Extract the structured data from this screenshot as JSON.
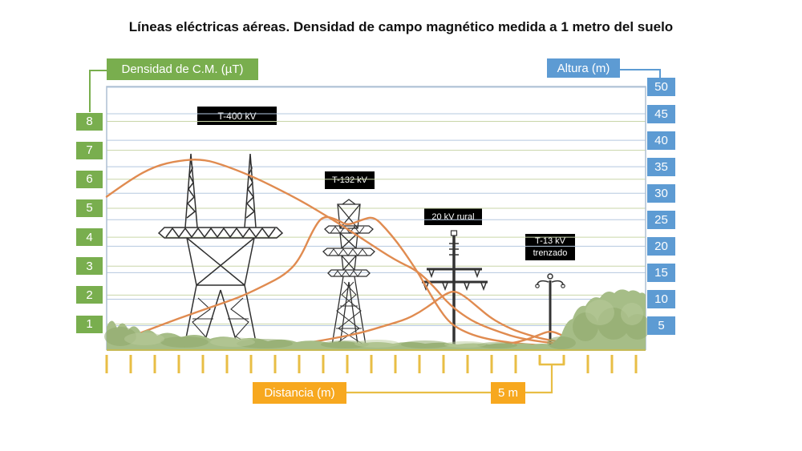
{
  "title": "Líneas eléctricas aéreas. Densidad de campo magnético medida a 1 metro del suelo",
  "left_axis": {
    "label": "Densidad de C.M. (µT)",
    "ticks": [
      "8",
      "7",
      "6",
      "5",
      "4",
      "3",
      "2",
      "1"
    ],
    "box_color": "#79AE4E",
    "grid_color": "#C9D6A8"
  },
  "right_axis": {
    "label": "Altura (m)",
    "ticks": [
      "50",
      "45",
      "40",
      "35",
      "30",
      "25",
      "20",
      "15",
      "10",
      "5"
    ],
    "box_color": "#5D9BD3",
    "grid_color": "#B5C8DF"
  },
  "bottom_axis": {
    "label": "Distancia (m)",
    "scale_label": "5 m",
    "tick_count": 23,
    "tick_interval_m": 5,
    "box_color": "#F7A81F",
    "tick_color": "#E8BE45"
  },
  "tower_labels": {
    "t400": "T-400 kV",
    "t132": "T-132 kV",
    "kv20": "20 kV rural",
    "t13_line1": "T-13 kV",
    "t13_line2": "trenzado"
  },
  "chart_data": {
    "type": "line",
    "title": "Densidad de campo magnético a 1 m del suelo vs distancia",
    "xlabel": "Distancia (m)",
    "ylabel_left": "Densidad de C.M. (µT)",
    "ylabel_right": "Altura (m)",
    "y_left_range": [
      1,
      8
    ],
    "y_right_range": [
      5,
      50
    ],
    "x_tick_interval_m": 5,
    "grid": true,
    "line_color": "#E08B50",
    "towers": [
      {
        "name": "T-400 kV",
        "x_m": 20,
        "approx_height_m": 37
      },
      {
        "name": "T-132 kV",
        "x_m": 50,
        "approx_height_m": 28
      },
      {
        "name": "20 kV rural",
        "x_m": 72,
        "approx_height_m": 21
      },
      {
        "name": "T-13 kV trenzado",
        "x_m": 92,
        "approx_height_m": 14
      }
    ],
    "series": [
      {
        "id": "t400",
        "name": "T-400 kV",
        "points": [
          [
            0,
            5.4
          ],
          [
            5,
            6.0
          ],
          [
            10,
            6.45
          ],
          [
            15,
            6.65
          ],
          [
            20,
            6.7
          ],
          [
            25,
            6.45
          ],
          [
            31,
            6.05
          ],
          [
            37,
            5.55
          ],
          [
            41,
            5.2
          ],
          [
            48,
            4.5
          ],
          [
            54,
            3.85
          ],
          [
            60,
            3.2
          ],
          [
            64.5,
            2.85
          ],
          [
            68,
            2.3
          ],
          [
            71,
            1.7
          ],
          [
            75,
            1.2
          ],
          [
            78,
            0.95
          ],
          [
            82,
            0.7
          ],
          [
            86,
            0.5
          ],
          [
            92,
            0.35
          ],
          [
            97,
            0.27
          ],
          [
            101,
            0.22
          ]
        ]
      },
      {
        "id": "t132",
        "name": "T-132 kV",
        "points": [
          [
            0.5,
            0.28
          ],
          [
            8,
            0.75
          ],
          [
            15,
            1.2
          ],
          [
            22,
            1.6
          ],
          [
            28,
            1.95
          ],
          [
            33,
            2.35
          ],
          [
            37,
            2.7
          ],
          [
            40,
            3.2
          ],
          [
            43,
            4.3
          ],
          [
            45,
            4.75
          ],
          [
            48,
            4.6
          ],
          [
            50,
            4.4
          ],
          [
            53,
            4.6
          ],
          [
            55.5,
            4.72
          ],
          [
            58,
            4.3
          ],
          [
            60.5,
            3.8
          ],
          [
            63,
            3.2
          ],
          [
            65,
            2.7
          ],
          [
            67,
            2.1
          ],
          [
            69,
            1.55
          ],
          [
            71,
            1.1
          ],
          [
            73,
            0.85
          ],
          [
            76,
            0.62
          ],
          [
            80,
            0.45
          ],
          [
            85,
            0.33
          ],
          [
            90,
            0.27
          ],
          [
            95,
            0.23
          ]
        ]
      },
      {
        "id": "kv20",
        "name": "20 kV rural",
        "points": [
          [
            33,
            0.15
          ],
          [
            40,
            0.3
          ],
          [
            47,
            0.5
          ],
          [
            53,
            0.7
          ],
          [
            58,
            0.95
          ],
          [
            62,
            1.15
          ],
          [
            65,
            1.4
          ],
          [
            68,
            1.75
          ],
          [
            70.5,
            2.05
          ],
          [
            72.3,
            2.15
          ],
          [
            74.5,
            1.95
          ],
          [
            77,
            1.6
          ],
          [
            79.5,
            1.25
          ],
          [
            82,
            1.0
          ],
          [
            84.5,
            0.8
          ],
          [
            87.5,
            0.63
          ],
          [
            91,
            0.47
          ],
          [
            95,
            0.37
          ],
          [
            100,
            0.28
          ],
          [
            104.5,
            0.24
          ]
        ]
      },
      {
        "id": "t13",
        "name": "T-13 kV trenzado",
        "points": [
          [
            78,
            0.22
          ],
          [
            83,
            0.3
          ],
          [
            86.5,
            0.42
          ],
          [
            89.5,
            0.6
          ],
          [
            92.2,
            0.78
          ],
          [
            94.5,
            0.62
          ],
          [
            97,
            0.45
          ],
          [
            99.5,
            0.33
          ],
          [
            102,
            0.26
          ],
          [
            105,
            0.22
          ]
        ]
      }
    ]
  }
}
